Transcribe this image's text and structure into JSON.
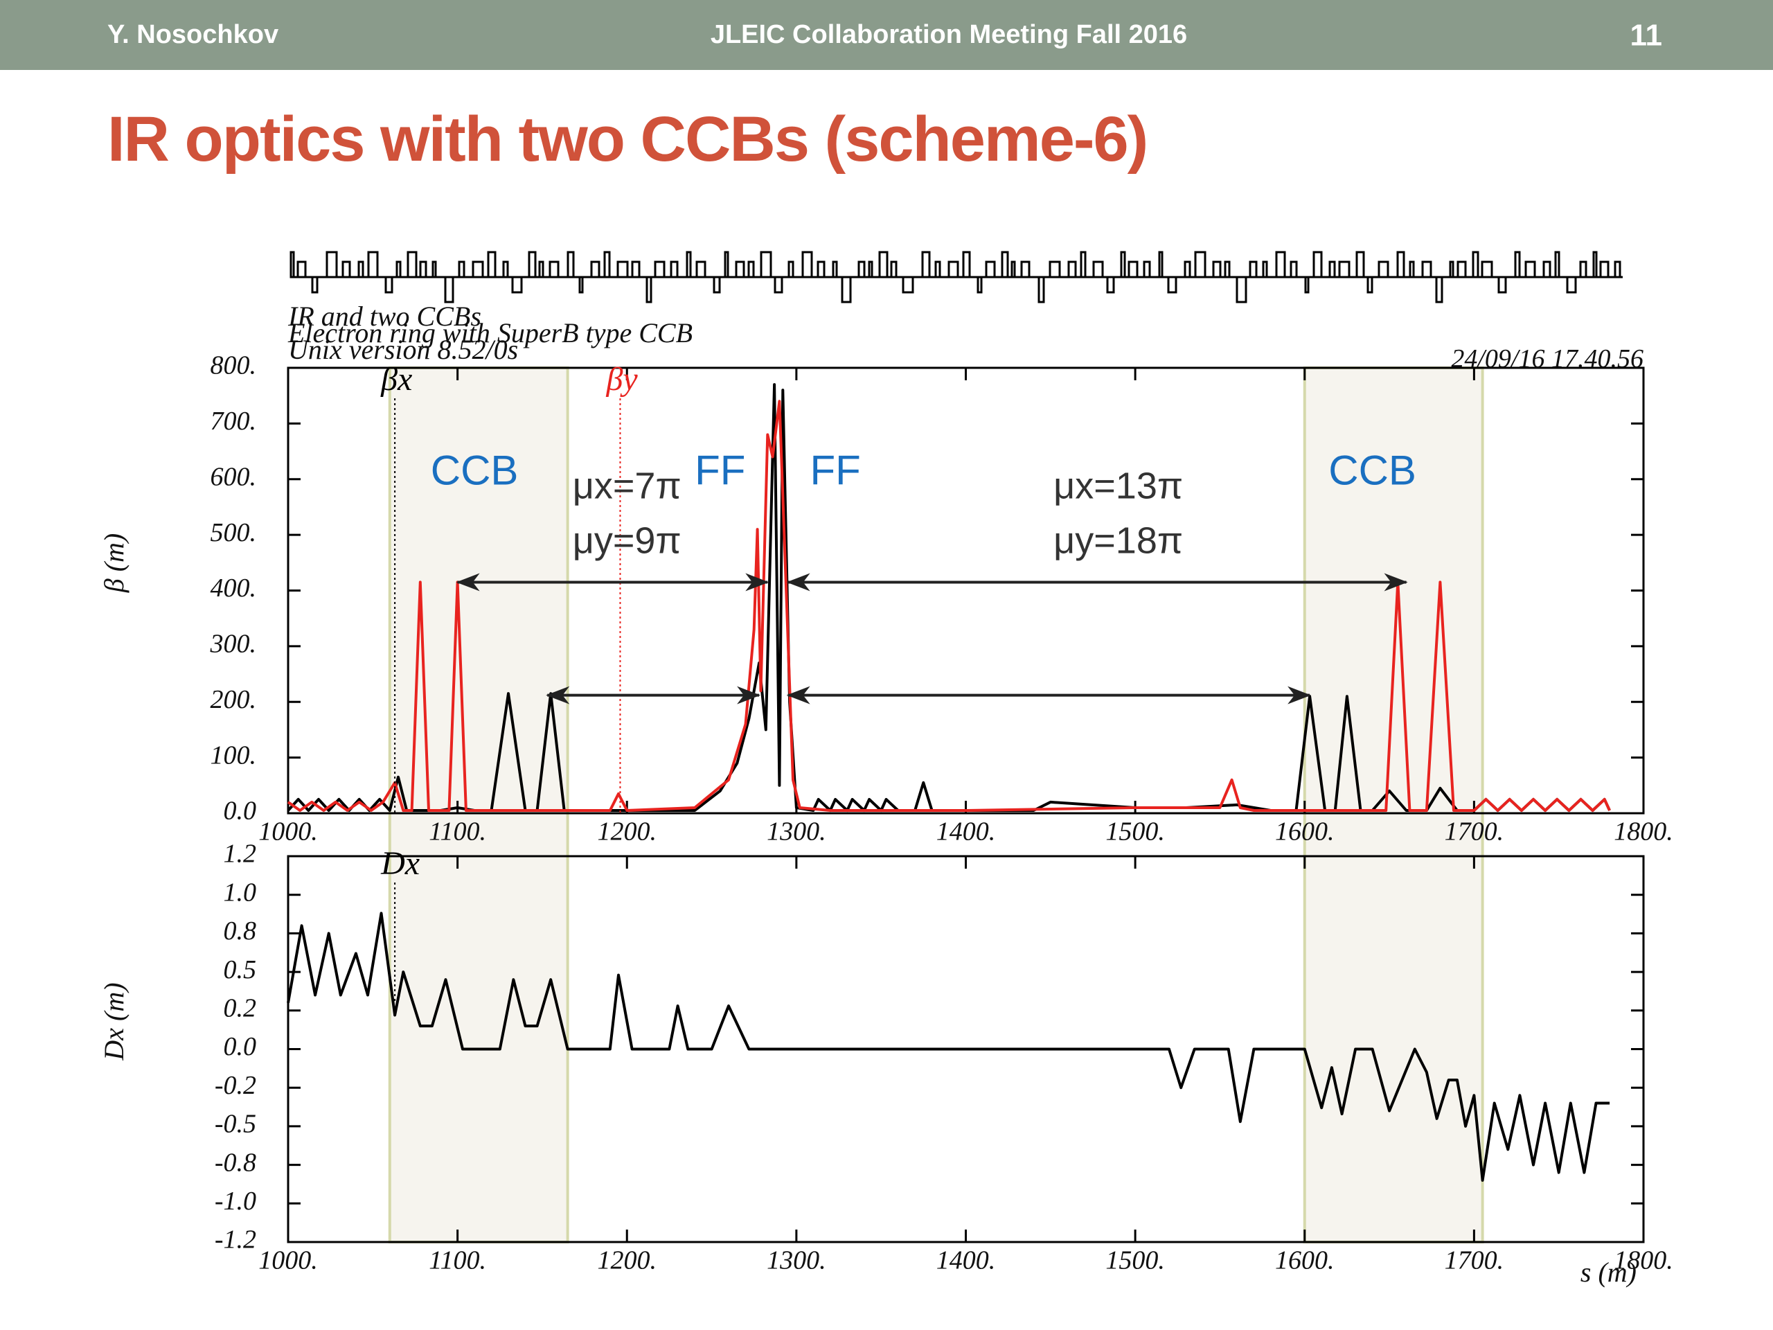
{
  "header": {
    "author": "Y. Nosochkov",
    "meeting": "JLEIC Collaboration Meeting Fall 2016",
    "page": "11"
  },
  "title": "IR optics with two CCBs (scheme-6)",
  "plot_header": [
    "IR and two CCBs",
    "Electron ring with SuperB type CCB",
    "Unix version 8.52/0s"
  ],
  "timestamp": "24/09/16  17.40.56",
  "annotations": [
    "CCB",
    "FF",
    "FF",
    "CCB",
    "μy=9π",
    "μy=18π",
    "μx=7π",
    "μx=13π"
  ],
  "chart_data": [
    {
      "type": "line",
      "y_label": "β (m)",
      "xlim": [
        1000,
        1800
      ],
      "xticks": [
        {
          "value": 1000,
          "label": "1000."
        },
        {
          "value": 1100,
          "label": "1100."
        },
        {
          "value": 1200,
          "label": "1200."
        },
        {
          "value": 1300,
          "label": "1300."
        },
        {
          "value": 1400,
          "label": "1400."
        },
        {
          "value": 1500,
          "label": "1500."
        },
        {
          "value": 1600,
          "label": "1600."
        },
        {
          "value": 1700,
          "label": "1700."
        },
        {
          "value": 1800,
          "label": "1800."
        }
      ],
      "ylim": [
        0,
        800
      ],
      "yticks": [
        {
          "value": 0,
          "label": "0.0"
        },
        {
          "value": 100,
          "label": "100."
        },
        {
          "value": 200,
          "label": "200."
        },
        {
          "value": 300,
          "label": "300."
        },
        {
          "value": 400,
          "label": "400."
        },
        {
          "value": 500,
          "label": "500."
        },
        {
          "value": 600,
          "label": "600."
        },
        {
          "value": 700,
          "label": "700."
        },
        {
          "value": 800,
          "label": "800."
        }
      ],
      "series": [
        {
          "name": "βx",
          "color": "#000000",
          "x": [
            1000,
            1006,
            1012,
            1018,
            1024,
            1030,
            1036,
            1042,
            1048,
            1054,
            1060,
            1065,
            1070,
            1080,
            1090,
            1100,
            1110,
            1120,
            1130,
            1140,
            1147,
            1155,
            1163,
            1175,
            1200,
            1220,
            1240,
            1255,
            1265,
            1272,
            1278,
            1282,
            1287,
            1290,
            1292,
            1296,
            1300,
            1310,
            1313,
            1320,
            1323,
            1330,
            1333,
            1340,
            1343,
            1350,
            1353,
            1360,
            1370,
            1375,
            1380,
            1400,
            1440,
            1450,
            1500,
            1530,
            1560,
            1580,
            1595,
            1603,
            1612,
            1618,
            1625,
            1633,
            1640,
            1650,
            1660,
            1672,
            1680,
            1690,
            1700,
            1707,
            1714,
            1721,
            1728,
            1735,
            1742,
            1749,
            1756,
            1763,
            1770,
            1777,
            1780
          ],
          "values": [
            5,
            25,
            5,
            25,
            5,
            25,
            5,
            25,
            5,
            25,
            5,
            65,
            5,
            5,
            5,
            10,
            5,
            5,
            215,
            5,
            5,
            215,
            5,
            5,
            5,
            5,
            5,
            40,
            90,
            170,
            270,
            150,
            770,
            50,
            760,
            200,
            10,
            5,
            25,
            5,
            25,
            5,
            25,
            5,
            25,
            5,
            25,
            5,
            5,
            55,
            5,
            5,
            5,
            20,
            10,
            10,
            15,
            5,
            5,
            210,
            5,
            5,
            210,
            5,
            5,
            40,
            5,
            5,
            45,
            5,
            5,
            25,
            5,
            25,
            5,
            25,
            5,
            25,
            5,
            25,
            5,
            25,
            5
          ]
        },
        {
          "name": "βy",
          "color": "#e8231f",
          "x": [
            1000,
            1007,
            1014,
            1021,
            1028,
            1035,
            1042,
            1049,
            1056,
            1063,
            1068,
            1073,
            1078,
            1083,
            1090,
            1095,
            1100,
            1105,
            1112,
            1150,
            1190,
            1195,
            1200,
            1240,
            1260,
            1270,
            1275,
            1277,
            1279,
            1283,
            1286,
            1290,
            1294,
            1298,
            1302,
            1320,
            1400,
            1500,
            1550,
            1557,
            1562,
            1570,
            1600,
            1640,
            1648,
            1655,
            1662,
            1672,
            1680,
            1688,
            1700,
            1707,
            1714,
            1721,
            1728,
            1735,
            1742,
            1749,
            1756,
            1763,
            1770,
            1777,
            1780
          ],
          "values": [
            20,
            5,
            20,
            5,
            20,
            5,
            20,
            5,
            20,
            55,
            5,
            5,
            415,
            5,
            5,
            5,
            415,
            5,
            5,
            5,
            5,
            35,
            5,
            10,
            60,
            160,
            330,
            510,
            220,
            680,
            640,
            740,
            400,
            60,
            10,
            5,
            5,
            10,
            10,
            60,
            10,
            5,
            5,
            5,
            5,
            415,
            5,
            5,
            415,
            5,
            5,
            25,
            5,
            25,
            5,
            25,
            5,
            25,
            5,
            25,
            5,
            25,
            5
          ]
        }
      ]
    },
    {
      "type": "line",
      "y_label": "Dx (m)",
      "x_label": "s (m)",
      "xlim": [
        1000,
        1800
      ],
      "xticks": [
        {
          "value": 1000,
          "label": "1000."
        },
        {
          "value": 1100,
          "label": "1100."
        },
        {
          "value": 1200,
          "label": "1200."
        },
        {
          "value": 1300,
          "label": "1300."
        },
        {
          "value": 1400,
          "label": "1400."
        },
        {
          "value": 1500,
          "label": "1500."
        },
        {
          "value": 1600,
          "label": "1600."
        },
        {
          "value": 1700,
          "label": "1700."
        },
        {
          "value": 1800,
          "label": "1800."
        }
      ],
      "ylim": [
        -1.25,
        1.25
      ],
      "yticks": [
        {
          "value": -1.25,
          "label": "-1.2"
        },
        {
          "value": -1,
          "label": "-1.0"
        },
        {
          "value": -0.75,
          "label": "-0.8"
        },
        {
          "value": -0.5,
          "label": "-0.5"
        },
        {
          "value": -0.25,
          "label": "-0.2"
        },
        {
          "value": 0,
          "label": "0.0"
        },
        {
          "value": 0.25,
          "label": "0.2"
        },
        {
          "value": 0.5,
          "label": "0.5"
        },
        {
          "value": 0.75,
          "label": "0.8"
        },
        {
          "value": 1,
          "label": "1.0"
        },
        {
          "value": 1.25,
          "label": "1.2"
        }
      ],
      "series": [
        {
          "name": "Dx",
          "color": "#000000",
          "x": [
            1000,
            1008,
            1016,
            1024,
            1031,
            1040,
            1047,
            1055,
            1063,
            1068,
            1078,
            1085,
            1093,
            1103,
            1125,
            1133,
            1140,
            1147,
            1155,
            1165,
            1190,
            1195,
            1203,
            1225,
            1230,
            1236,
            1250,
            1260,
            1272,
            1520,
            1527,
            1535,
            1555,
            1562,
            1570,
            1600,
            1610,
            1616,
            1622,
            1630,
            1640,
            1650,
            1665,
            1672,
            1678,
            1685,
            1690,
            1695,
            1700,
            1705,
            1712,
            1720,
            1727,
            1735,
            1742,
            1750,
            1757,
            1765,
            1772,
            1780
          ],
          "values": [
            0.3,
            0.8,
            0.35,
            0.75,
            0.35,
            0.62,
            0.35,
            0.88,
            0.22,
            0.5,
            0.15,
            0.15,
            0.45,
            0,
            0,
            0.45,
            0.15,
            0.15,
            0.45,
            0,
            0,
            0.48,
            0,
            0,
            0.28,
            0,
            0,
            0.28,
            0,
            0,
            -0.25,
            0,
            0,
            -0.47,
            0,
            0,
            -0.38,
            -0.12,
            -0.42,
            0,
            0,
            -0.4,
            0,
            -0.15,
            -0.45,
            -0.2,
            -0.2,
            -0.5,
            -0.3,
            -0.85,
            -0.35,
            -0.65,
            -0.3,
            -0.75,
            -0.35,
            -0.8,
            -0.35,
            -0.8,
            -0.35,
            -0.35
          ]
        }
      ]
    }
  ]
}
